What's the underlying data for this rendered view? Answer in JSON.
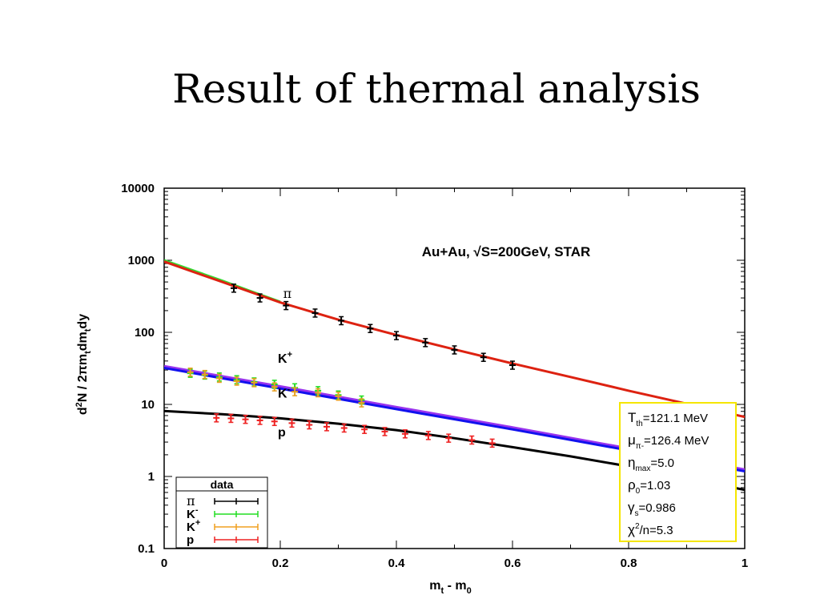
{
  "slide": {
    "title": "Result of thermal analysis"
  },
  "chart_data": {
    "type": "scatter",
    "title": "",
    "annotation": "Au+Au, √S=200GeV, STAR",
    "xlabel": {
      "main": "m",
      "sub1": "t",
      "mid": " - m",
      "sub2": "0"
    },
    "ylabel": {
      "pre": "d",
      "sup": "2",
      "mid": "N / 2πm",
      "sub1": "t",
      "mid2": "dm",
      "sub2": "t",
      "post": "dy"
    },
    "xlim": [
      0,
      1
    ],
    "ylim": [
      0.1,
      10000
    ],
    "yscale": "log",
    "x_ticks": [
      "0",
      "0.2",
      "0.4",
      "0.6",
      "0.8",
      "1"
    ],
    "y_ticks": [
      "0.1",
      "1",
      "10",
      "100",
      "1000",
      "10000"
    ],
    "grid": false,
    "legend": {
      "position": "bottom-left",
      "title": "data",
      "entries": [
        {
          "label": "π",
          "color": "#000000"
        },
        {
          "label": "K",
          "sup": "-",
          "color": "#22dd22"
        },
        {
          "label": "K",
          "sup": "+",
          "color": "#f0a020"
        },
        {
          "label": "p",
          "color": "#ee2222"
        }
      ]
    },
    "curve_labels": [
      {
        "text": "π",
        "x": 0.205,
        "y": 300
      },
      {
        "text": "K",
        "sup": "+",
        "x": 0.2,
        "y": 38
      },
      {
        "text": "K",
        "sup": "-",
        "x": 0.2,
        "y": 12.5
      },
      {
        "text": "p",
        "x": 0.2,
        "y": 3.6
      }
    ],
    "series": [
      {
        "name": "π",
        "kind": "points",
        "color": "#000000",
        "x": [
          0.12,
          0.165,
          0.21,
          0.26,
          0.305,
          0.355,
          0.4,
          0.45,
          0.5,
          0.55,
          0.6
        ],
        "y": [
          410,
          300,
          235,
          185,
          145,
          113,
          90,
          72,
          57,
          45,
          35
        ]
      },
      {
        "name": "K-",
        "kind": "points",
        "color": "#22dd22",
        "x": [
          0.045,
          0.07,
          0.095,
          0.125,
          0.155,
          0.19,
          0.225,
          0.265,
          0.3,
          0.34
        ],
        "y": [
          27,
          25.5,
          24,
          22,
          20.5,
          19,
          17,
          15.5,
          13.5,
          11.5
        ]
      },
      {
        "name": "K+",
        "kind": "points",
        "color": "#e8a020",
        "x": [
          0.045,
          0.07,
          0.095,
          0.125,
          0.155,
          0.19,
          0.225,
          0.265,
          0.3,
          0.34
        ],
        "y": [
          28,
          26,
          23,
          21,
          20,
          17.5,
          15,
          14.5,
          13,
          10.5
        ]
      },
      {
        "name": "p",
        "kind": "points",
        "color": "#ee2222",
        "x": [
          0.09,
          0.115,
          0.14,
          0.165,
          0.19,
          0.22,
          0.25,
          0.28,
          0.31,
          0.345,
          0.38,
          0.415,
          0.455,
          0.49,
          0.53,
          0.565
        ],
        "y": [
          6.5,
          6.4,
          6.2,
          6.0,
          5.8,
          5.5,
          5.2,
          4.9,
          4.7,
          4.5,
          4.2,
          3.9,
          3.7,
          3.4,
          3.2,
          2.9
        ]
      },
      {
        "name": "fit π (green)",
        "kind": "line",
        "color": "#33dd33",
        "x": [
          0,
          0.05,
          0.1,
          0.15,
          0.2
        ],
        "y": [
          1000,
          720,
          520,
          370,
          265
        ]
      },
      {
        "name": "fit π (red)",
        "kind": "line",
        "color": "#dd2211",
        "x": [
          0,
          0.05,
          0.1,
          0.15,
          0.2,
          0.3,
          0.4,
          0.5,
          0.6,
          0.7,
          0.8,
          0.9,
          1.0
        ],
        "y": [
          960,
          690,
          500,
          360,
          260,
          150,
          92,
          58,
          37,
          24,
          15.5,
          10.2,
          6.7
        ]
      },
      {
        "name": "fit K+ (purple)",
        "kind": "line",
        "color": "#9933ee",
        "x": [
          0,
          0.2,
          0.4,
          0.6,
          0.8,
          1.0
        ],
        "y": [
          34,
          17.8,
          9.2,
          4.8,
          2.45,
          1.25
        ]
      },
      {
        "name": "fit K- (blue)",
        "kind": "line",
        "color": "#1111ee",
        "x": [
          0,
          0.2,
          0.4,
          0.6,
          0.8,
          1.0
        ],
        "y": [
          32,
          16.6,
          8.6,
          4.5,
          2.3,
          1.18
        ]
      },
      {
        "name": "fit p (black)",
        "kind": "line",
        "color": "#000000",
        "x": [
          0,
          0.1,
          0.2,
          0.3,
          0.4,
          0.5,
          0.6,
          0.7,
          0.8,
          0.9,
          1.0
        ],
        "y": [
          8.1,
          7.3,
          6.4,
          5.4,
          4.4,
          3.4,
          2.55,
          1.9,
          1.38,
          0.95,
          0.65
        ]
      }
    ],
    "parameters": [
      {
        "sym": "T",
        "sub": "th",
        "sup": "",
        "val": "=121.1 MeV"
      },
      {
        "sym": "μ",
        "sub": "π-",
        "sup": "",
        "val": "=126.4 MeV"
      },
      {
        "sym": "η",
        "sub": "max",
        "sup": "",
        "val": "=5.0"
      },
      {
        "sym": "ρ",
        "sub": "0",
        "sup": "",
        "val": "=1.03"
      },
      {
        "sym": "γ",
        "sub": "s",
        "sup": "",
        "val": "=0.986"
      },
      {
        "sym": "χ",
        "sub": "",
        "sup": "2",
        "val": "/n=5.3"
      }
    ],
    "colors": {
      "parameter_box_border": "#f5e600"
    }
  }
}
